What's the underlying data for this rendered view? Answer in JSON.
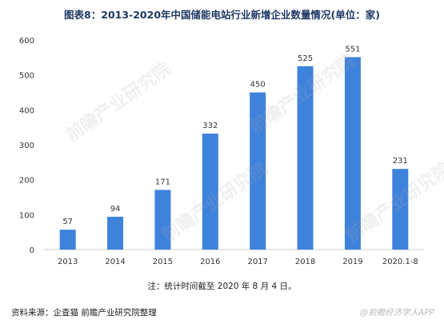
{
  "title": "图表8：2013-2020年中国储能电站行业新增企业数量情况(单位：家)",
  "note": "注：统计时间截至 2020 年 8 月 4 日。",
  "source": "资料来源：企查猫 前瞻产业研究院整理",
  "brand": "@前瞻经济学人APP",
  "watermark": "前瞻产业研究院",
  "colors": {
    "bar": "#3f82dc",
    "title": "#1f3864",
    "text": "#333333"
  },
  "chart_data": {
    "type": "bar",
    "categories": [
      "2013",
      "2014",
      "2015",
      "2016",
      "2017",
      "2018",
      "2019",
      "2020.1-8"
    ],
    "values": [
      57,
      94,
      171,
      332,
      450,
      525,
      551,
      231
    ],
    "ylim": [
      0,
      600
    ],
    "yticks": [
      0,
      100,
      200,
      300,
      400,
      500,
      600
    ],
    "grid": false,
    "data_labels": true
  }
}
